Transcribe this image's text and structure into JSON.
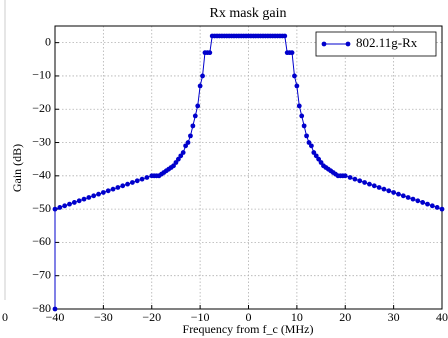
{
  "chart_data": {
    "type": "line",
    "title": "Rx mask gain",
    "x_label": "Frequency from f_c (MHz)",
    "y_label": "Gain (dB)",
    "edge_label": "0",
    "x": [
      -40,
      -40,
      -39,
      -38,
      -37,
      -36,
      -35,
      -34,
      -33,
      -32,
      -31,
      -30,
      -29,
      -28,
      -27,
      -26,
      -25,
      -24,
      -23,
      -22,
      -21,
      -20,
      -19.5,
      -19,
      -18.5,
      -18,
      -17.5,
      -17,
      -16.5,
      -16,
      -15.5,
      -15,
      -14.5,
      -14,
      -13.5,
      -13,
      -12.5,
      -12,
      -11.5,
      -11,
      -10.5,
      -10,
      -9.5,
      -9,
      -8.5,
      -8,
      -7.5,
      -7,
      -6.5,
      -6,
      -5.5,
      -5,
      -4.5,
      -4,
      -3.5,
      -3,
      -2.5,
      -2,
      -1.5,
      -1,
      -0.5,
      0,
      0.5,
      1,
      1.5,
      2,
      2.5,
      3,
      3.5,
      4,
      4.5,
      5,
      5.5,
      6,
      6.5,
      7,
      7.5,
      8,
      8.5,
      9,
      9.5,
      10,
      10.5,
      11,
      11.5,
      12,
      12.5,
      13,
      13.5,
      14,
      14.5,
      15,
      15.5,
      16,
      16.5,
      17,
      17.5,
      18,
      18.5,
      19,
      19.5,
      20,
      21,
      22,
      23,
      24,
      25,
      26,
      27,
      28,
      29,
      30,
      31,
      32,
      33,
      34,
      35,
      36,
      37,
      38,
      39,
      40
    ],
    "series": [
      {
        "name": "802.11g-Rx",
        "color": "#0000cc",
        "values": [
          -80,
          -50,
          -49.5,
          -49,
          -48.5,
          -48,
          -47.5,
          -47,
          -46.5,
          -46,
          -45.5,
          -45,
          -44.5,
          -44,
          -43.5,
          -43,
          -42.5,
          -42,
          -41.5,
          -41,
          -40.5,
          -40,
          -40,
          -40,
          -40,
          -39.5,
          -39,
          -38.5,
          -38,
          -37.5,
          -37,
          -36,
          -35,
          -34,
          -33,
          -31,
          -30,
          -28,
          -25,
          -22,
          -19,
          -13,
          -10,
          -3,
          -3,
          -3,
          2,
          2,
          2,
          2,
          2,
          2,
          2,
          2,
          2,
          2,
          2,
          2,
          2,
          2,
          2,
          2,
          2,
          2,
          2,
          2,
          2,
          2,
          2,
          2,
          2,
          2,
          2,
          2,
          2,
          2,
          2,
          -3,
          -3,
          -3,
          -10,
          -13,
          -19,
          -22,
          -25,
          -28,
          -30,
          -31,
          -33,
          -34,
          -35,
          -36,
          -37,
          -37.5,
          -38,
          -38.5,
          -39,
          -39.5,
          -40,
          -40,
          -40,
          -40,
          -40.5,
          -41,
          -41.5,
          -42,
          -42.5,
          -43,
          -43.5,
          -44,
          -44.5,
          -45,
          -45.5,
          -46,
          -46.5,
          -47,
          -47.5,
          -48,
          -48.5,
          -49,
          -49.5,
          -50
        ]
      }
    ],
    "xlim": [
      -40,
      40
    ],
    "ylim": [
      -80,
      5
    ],
    "xticks": [
      {
        "value": -40,
        "label": "−40"
      },
      {
        "value": -30,
        "label": "−30"
      },
      {
        "value": -20,
        "label": "−20"
      },
      {
        "value": -10,
        "label": "−10"
      },
      0,
      10,
      20,
      30,
      40
    ],
    "yticks": [
      {
        "value": -80,
        "label": "−80"
      },
      {
        "value": -70,
        "label": "−70"
      },
      {
        "value": -60,
        "label": "−60"
      },
      {
        "value": -50,
        "label": "−50"
      },
      {
        "value": -40,
        "label": "−40"
      },
      {
        "value": -30,
        "label": "−30"
      },
      {
        "value": -20,
        "label": "−20"
      },
      {
        "value": -10,
        "label": "−10"
      },
      0
    ],
    "grid": true,
    "legend": "upper right"
  }
}
